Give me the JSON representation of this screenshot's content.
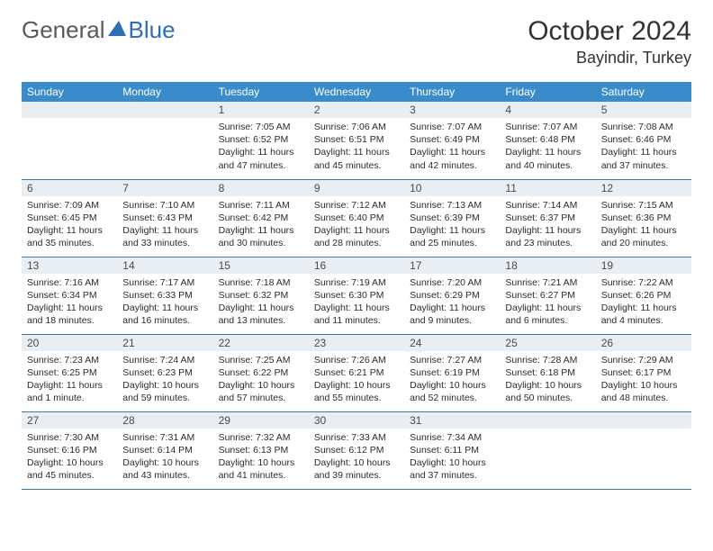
{
  "logo": {
    "text_general": "General",
    "text_blue": "Blue"
  },
  "title": "October 2024",
  "location": "Bayindir, Turkey",
  "colors": {
    "header_bg": "#3a8bc9",
    "header_text": "#ffffff",
    "date_bar_bg": "#e8eef2",
    "row_border": "#3a7aad",
    "logo_blue": "#2d6fb5",
    "text": "#2b2b2b"
  },
  "day_headers": [
    "Sunday",
    "Monday",
    "Tuesday",
    "Wednesday",
    "Thursday",
    "Friday",
    "Saturday"
  ],
  "weeks": [
    [
      {
        "blank": true
      },
      {
        "blank": true
      },
      {
        "date": "1",
        "sunrise": "Sunrise: 7:05 AM",
        "sunset": "Sunset: 6:52 PM",
        "daylight": "Daylight: 11 hours and 47 minutes."
      },
      {
        "date": "2",
        "sunrise": "Sunrise: 7:06 AM",
        "sunset": "Sunset: 6:51 PM",
        "daylight": "Daylight: 11 hours and 45 minutes."
      },
      {
        "date": "3",
        "sunrise": "Sunrise: 7:07 AM",
        "sunset": "Sunset: 6:49 PM",
        "daylight": "Daylight: 11 hours and 42 minutes."
      },
      {
        "date": "4",
        "sunrise": "Sunrise: 7:07 AM",
        "sunset": "Sunset: 6:48 PM",
        "daylight": "Daylight: 11 hours and 40 minutes."
      },
      {
        "date": "5",
        "sunrise": "Sunrise: 7:08 AM",
        "sunset": "Sunset: 6:46 PM",
        "daylight": "Daylight: 11 hours and 37 minutes."
      }
    ],
    [
      {
        "date": "6",
        "sunrise": "Sunrise: 7:09 AM",
        "sunset": "Sunset: 6:45 PM",
        "daylight": "Daylight: 11 hours and 35 minutes."
      },
      {
        "date": "7",
        "sunrise": "Sunrise: 7:10 AM",
        "sunset": "Sunset: 6:43 PM",
        "daylight": "Daylight: 11 hours and 33 minutes."
      },
      {
        "date": "8",
        "sunrise": "Sunrise: 7:11 AM",
        "sunset": "Sunset: 6:42 PM",
        "daylight": "Daylight: 11 hours and 30 minutes."
      },
      {
        "date": "9",
        "sunrise": "Sunrise: 7:12 AM",
        "sunset": "Sunset: 6:40 PM",
        "daylight": "Daylight: 11 hours and 28 minutes."
      },
      {
        "date": "10",
        "sunrise": "Sunrise: 7:13 AM",
        "sunset": "Sunset: 6:39 PM",
        "daylight": "Daylight: 11 hours and 25 minutes."
      },
      {
        "date": "11",
        "sunrise": "Sunrise: 7:14 AM",
        "sunset": "Sunset: 6:37 PM",
        "daylight": "Daylight: 11 hours and 23 minutes."
      },
      {
        "date": "12",
        "sunrise": "Sunrise: 7:15 AM",
        "sunset": "Sunset: 6:36 PM",
        "daylight": "Daylight: 11 hours and 20 minutes."
      }
    ],
    [
      {
        "date": "13",
        "sunrise": "Sunrise: 7:16 AM",
        "sunset": "Sunset: 6:34 PM",
        "daylight": "Daylight: 11 hours and 18 minutes."
      },
      {
        "date": "14",
        "sunrise": "Sunrise: 7:17 AM",
        "sunset": "Sunset: 6:33 PM",
        "daylight": "Daylight: 11 hours and 16 minutes."
      },
      {
        "date": "15",
        "sunrise": "Sunrise: 7:18 AM",
        "sunset": "Sunset: 6:32 PM",
        "daylight": "Daylight: 11 hours and 13 minutes."
      },
      {
        "date": "16",
        "sunrise": "Sunrise: 7:19 AM",
        "sunset": "Sunset: 6:30 PM",
        "daylight": "Daylight: 11 hours and 11 minutes."
      },
      {
        "date": "17",
        "sunrise": "Sunrise: 7:20 AM",
        "sunset": "Sunset: 6:29 PM",
        "daylight": "Daylight: 11 hours and 9 minutes."
      },
      {
        "date": "18",
        "sunrise": "Sunrise: 7:21 AM",
        "sunset": "Sunset: 6:27 PM",
        "daylight": "Daylight: 11 hours and 6 minutes."
      },
      {
        "date": "19",
        "sunrise": "Sunrise: 7:22 AM",
        "sunset": "Sunset: 6:26 PM",
        "daylight": "Daylight: 11 hours and 4 minutes."
      }
    ],
    [
      {
        "date": "20",
        "sunrise": "Sunrise: 7:23 AM",
        "sunset": "Sunset: 6:25 PM",
        "daylight": "Daylight: 11 hours and 1 minute."
      },
      {
        "date": "21",
        "sunrise": "Sunrise: 7:24 AM",
        "sunset": "Sunset: 6:23 PM",
        "daylight": "Daylight: 10 hours and 59 minutes."
      },
      {
        "date": "22",
        "sunrise": "Sunrise: 7:25 AM",
        "sunset": "Sunset: 6:22 PM",
        "daylight": "Daylight: 10 hours and 57 minutes."
      },
      {
        "date": "23",
        "sunrise": "Sunrise: 7:26 AM",
        "sunset": "Sunset: 6:21 PM",
        "daylight": "Daylight: 10 hours and 55 minutes."
      },
      {
        "date": "24",
        "sunrise": "Sunrise: 7:27 AM",
        "sunset": "Sunset: 6:19 PM",
        "daylight": "Daylight: 10 hours and 52 minutes."
      },
      {
        "date": "25",
        "sunrise": "Sunrise: 7:28 AM",
        "sunset": "Sunset: 6:18 PM",
        "daylight": "Daylight: 10 hours and 50 minutes."
      },
      {
        "date": "26",
        "sunrise": "Sunrise: 7:29 AM",
        "sunset": "Sunset: 6:17 PM",
        "daylight": "Daylight: 10 hours and 48 minutes."
      }
    ],
    [
      {
        "date": "27",
        "sunrise": "Sunrise: 7:30 AM",
        "sunset": "Sunset: 6:16 PM",
        "daylight": "Daylight: 10 hours and 45 minutes."
      },
      {
        "date": "28",
        "sunrise": "Sunrise: 7:31 AM",
        "sunset": "Sunset: 6:14 PM",
        "daylight": "Daylight: 10 hours and 43 minutes."
      },
      {
        "date": "29",
        "sunrise": "Sunrise: 7:32 AM",
        "sunset": "Sunset: 6:13 PM",
        "daylight": "Daylight: 10 hours and 41 minutes."
      },
      {
        "date": "30",
        "sunrise": "Sunrise: 7:33 AM",
        "sunset": "Sunset: 6:12 PM",
        "daylight": "Daylight: 10 hours and 39 minutes."
      },
      {
        "date": "31",
        "sunrise": "Sunrise: 7:34 AM",
        "sunset": "Sunset: 6:11 PM",
        "daylight": "Daylight: 10 hours and 37 minutes."
      },
      {
        "blank": true
      },
      {
        "blank": true
      }
    ]
  ]
}
